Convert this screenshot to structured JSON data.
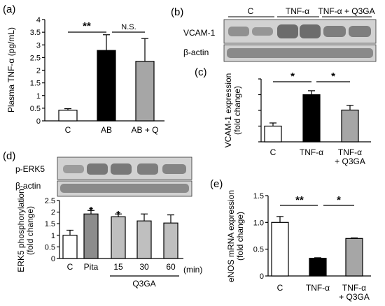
{
  "panels": {
    "a": {
      "label": "(a)",
      "sig": [
        "**",
        "N.S."
      ]
    },
    "b": {
      "label": "(b)",
      "row_labels": [
        "VCAM-1",
        "β-actin"
      ],
      "groups": [
        "C",
        "TNF-α",
        "TNF-α + Q3GA"
      ]
    },
    "c": {
      "label": "(c)",
      "sig": [
        "*",
        "*"
      ]
    },
    "d": {
      "label": "(d)",
      "row_labels": [
        "p-ERK5",
        "β-actin"
      ],
      "group_label": "Q3GA",
      "unit": "(min)",
      "sig": [
        "*",
        "*"
      ]
    },
    "e": {
      "label": "(e)",
      "sig": [
        "**",
        "*"
      ]
    }
  },
  "chart_data": [
    {
      "id": "a",
      "type": "bar",
      "categories": [
        "C",
        "AB",
        "AB + Q"
      ],
      "values": [
        0.42,
        2.78,
        2.35
      ],
      "errors": [
        0.06,
        0.62,
        0.9
      ],
      "colors": [
        "#ffffff",
        "#000000",
        "#a6a6a6"
      ],
      "ylabel": "Plasma TNF-α (pg/mL)",
      "ylim": [
        0,
        4
      ],
      "yticks": [
        "0",
        "0.5",
        "1",
        "1.5",
        "2",
        "2.5",
        "3",
        "3.5",
        "4"
      ]
    },
    {
      "id": "c",
      "type": "bar",
      "categories": [
        "C",
        "TNF-α",
        "TNF-α\n+ Q3GA"
      ],
      "values": [
        1.0,
        3.0,
        2.02
      ],
      "errors": [
        0.2,
        0.25,
        0.3
      ],
      "colors": [
        "#ffffff",
        "#000000",
        "#a6a6a6"
      ],
      "ylabel": "VCAM-1 expression\n(fold change)",
      "ylim": [
        0,
        4
      ]
    },
    {
      "id": "d",
      "type": "bar",
      "categories": [
        "C",
        "Pita",
        "15",
        "30",
        "60"
      ],
      "values": [
        1.0,
        1.92,
        1.8,
        1.62,
        1.53
      ],
      "errors": [
        0.22,
        0.15,
        0.12,
        0.3,
        0.35
      ],
      "colors": [
        "#ffffff",
        "#8c8c8c",
        "#bfbfbf",
        "#bfbfbf",
        "#bfbfbf"
      ],
      "ylabel": "ERK5 phosphorylation\n(fold change)",
      "ylim": [
        0,
        2.5
      ],
      "yticks": [
        "0",
        "0.5",
        "1",
        "1.5",
        "2",
        "2.5"
      ]
    },
    {
      "id": "e",
      "type": "bar",
      "categories": [
        "C",
        "TNF-α",
        "TNF-α\n+ Q3GA"
      ],
      "values": [
        1.0,
        0.33,
        0.7
      ],
      "errors": [
        0.11,
        0.01,
        0.01
      ],
      "colors": [
        "#ffffff",
        "#000000",
        "#a6a6a6"
      ],
      "ylabel": "eNOS mRNA expression\n(fold change)",
      "ylim": [
        0,
        1.5
      ],
      "yticks": [
        "0",
        "0.5",
        "1.0",
        "1.5"
      ]
    }
  ]
}
